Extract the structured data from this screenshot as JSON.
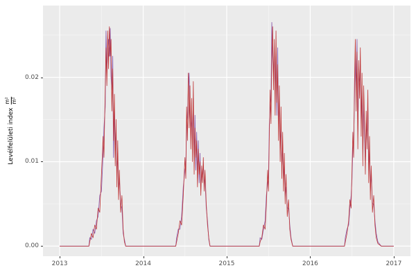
{
  "axes": {
    "y_title": "Levélfelületi index",
    "y_title_frac_numerator": "m²",
    "y_title_frac_denominator": "m²"
  },
  "chart_data": {
    "type": "line",
    "title": "",
    "xlabel": "",
    "ylabel": "Levélfelületi index m²/m²",
    "legend": "none",
    "grid": true,
    "panel_bg": "#ebebeb",
    "grid_major_color": "#ffffff",
    "grid_minor_color": "#f6f6f6",
    "xlim": [
      2012.8,
      2017.2
    ],
    "ylim": [
      -0.0012,
      0.0285
    ],
    "x_ticks": [
      2013,
      2014,
      2015,
      2016,
      2017
    ],
    "x_tick_labels": [
      "2013",
      "2014",
      "2015",
      "2016",
      "2017"
    ],
    "x_minor_ticks": [
      2013.5,
      2014.5,
      2015.5,
      2016.5
    ],
    "y_ticks": [
      0,
      0.01,
      0.02
    ],
    "y_tick_labels": [
      "0.00",
      "0.01",
      "0.02"
    ],
    "y_minor_ticks": [
      0.005,
      0.015,
      0.025
    ],
    "series": [
      {
        "name": "series-purple",
        "color": "#8e5fae",
        "width": 0.9,
        "points": [
          [
            2013.0,
            0
          ],
          [
            2013.35,
            0
          ],
          [
            2013.36,
            0.001
          ],
          [
            2013.38,
            0.0008
          ],
          [
            2013.4,
            0.002
          ],
          [
            2013.42,
            0.0015
          ],
          [
            2013.44,
            0.003
          ],
          [
            2013.46,
            0.0035
          ],
          [
            2013.48,
            0.006
          ],
          [
            2013.5,
            0.0065
          ],
          [
            2013.52,
            0.011
          ],
          [
            2013.53,
            0.014
          ],
          [
            2013.545,
            0.0165
          ],
          [
            2013.555,
            0.0255
          ],
          [
            2013.565,
            0.0205
          ],
          [
            2013.575,
            0.0235
          ],
          [
            2013.585,
            0.0245
          ],
          [
            2013.595,
            0.0225
          ],
          [
            2013.605,
            0.0258
          ],
          [
            2013.615,
            0.02
          ],
          [
            2013.625,
            0.0185
          ],
          [
            2013.635,
            0.0225
          ],
          [
            2013.645,
            0.0105
          ],
          [
            2013.655,
            0.0165
          ],
          [
            2013.665,
            0.012
          ],
          [
            2013.675,
            0.0135
          ],
          [
            2013.685,
            0.0085
          ],
          [
            2013.695,
            0.011
          ],
          [
            2013.705,
            0.0065
          ],
          [
            2013.715,
            0.008
          ],
          [
            2013.73,
            0.005
          ],
          [
            2013.745,
            0.0045
          ],
          [
            2013.76,
            0.0015
          ],
          [
            2013.775,
            0.0008
          ],
          [
            2013.79,
            0
          ],
          [
            2014.39,
            0
          ],
          [
            2014.4,
            0.001
          ],
          [
            2014.42,
            0.002
          ],
          [
            2014.44,
            0.002
          ],
          [
            2014.46,
            0.0035
          ],
          [
            2014.48,
            0.007
          ],
          [
            2014.5,
            0.009
          ],
          [
            2014.51,
            0.0095
          ],
          [
            2014.52,
            0.0145
          ],
          [
            2014.53,
            0.0155
          ],
          [
            2014.54,
            0.0185
          ],
          [
            2014.55,
            0.0205
          ],
          [
            2014.56,
            0.016
          ],
          [
            2014.57,
            0.0135
          ],
          [
            2014.58,
            0.0155
          ],
          [
            2014.59,
            0.012
          ],
          [
            2014.6,
            0.0175
          ],
          [
            2014.61,
            0.01
          ],
          [
            2014.62,
            0.0155
          ],
          [
            2014.63,
            0.009
          ],
          [
            2014.64,
            0.0135
          ],
          [
            2014.65,
            0.008
          ],
          [
            2014.66,
            0.0125
          ],
          [
            2014.67,
            0.0075
          ],
          [
            2014.68,
            0.011
          ],
          [
            2014.69,
            0.007
          ],
          [
            2014.7,
            0.0085
          ],
          [
            2014.71,
            0.0085
          ],
          [
            2014.72,
            0.0095
          ],
          [
            2014.73,
            0.0075
          ],
          [
            2014.74,
            0.008
          ],
          [
            2014.755,
            0.0045
          ],
          [
            2014.77,
            0.003
          ],
          [
            2014.785,
            0.0008
          ],
          [
            2014.8,
            0
          ],
          [
            2015.39,
            0
          ],
          [
            2015.4,
            0.001
          ],
          [
            2015.42,
            0.0008
          ],
          [
            2015.44,
            0.002
          ],
          [
            2015.46,
            0.003
          ],
          [
            2015.475,
            0.006
          ],
          [
            2015.49,
            0.0075
          ],
          [
            2015.5,
            0.008
          ],
          [
            2015.51,
            0.0145
          ],
          [
            2015.52,
            0.0165
          ],
          [
            2015.53,
            0.0175
          ],
          [
            2015.54,
            0.0265
          ],
          [
            2015.55,
            0.0225
          ],
          [
            2015.56,
            0.0205
          ],
          [
            2015.57,
            0.0225
          ],
          [
            2015.58,
            0.018
          ],
          [
            2015.59,
            0.0235
          ],
          [
            2015.6,
            0.0155
          ],
          [
            2015.61,
            0.0235
          ],
          [
            2015.62,
            0.0145
          ],
          [
            2015.63,
            0.017
          ],
          [
            2015.64,
            0.0115
          ],
          [
            2015.65,
            0.0145
          ],
          [
            2015.66,
            0.0095
          ],
          [
            2015.67,
            0.012
          ],
          [
            2015.68,
            0.008
          ],
          [
            2015.69,
            0.0095
          ],
          [
            2015.7,
            0.006
          ],
          [
            2015.71,
            0.007
          ],
          [
            2015.725,
            0.0045
          ],
          [
            2015.74,
            0.0045
          ],
          [
            2015.755,
            0.0025
          ],
          [
            2015.77,
            0.001
          ],
          [
            2015.79,
            0
          ],
          [
            2016.41,
            0
          ],
          [
            2016.42,
            0.001
          ],
          [
            2016.44,
            0.002
          ],
          [
            2016.46,
            0.0025
          ],
          [
            2016.475,
            0.0045
          ],
          [
            2016.49,
            0.006
          ],
          [
            2016.5,
            0.008
          ],
          [
            2016.51,
            0.0115
          ],
          [
            2016.52,
            0.0125
          ],
          [
            2016.53,
            0.0175
          ],
          [
            2016.54,
            0.0225
          ],
          [
            2016.55,
            0.0185
          ],
          [
            2016.56,
            0.0245
          ],
          [
            2016.57,
            0.0135
          ],
          [
            2016.58,
            0.02
          ],
          [
            2016.59,
            0.0195
          ],
          [
            2016.6,
            0.0215
          ],
          [
            2016.61,
            0.0145
          ],
          [
            2016.62,
            0.0185
          ],
          [
            2016.63,
            0.0115
          ],
          [
            2016.64,
            0.0175
          ],
          [
            2016.65,
            0.0125
          ],
          [
            2016.66,
            0.01
          ],
          [
            2016.67,
            0.0145
          ],
          [
            2016.68,
            0.013
          ],
          [
            2016.69,
            0.0165
          ],
          [
            2016.7,
            0.009
          ],
          [
            2016.71,
            0.0115
          ],
          [
            2016.72,
            0.007
          ],
          [
            2016.73,
            0.0085
          ],
          [
            2016.745,
            0.005
          ],
          [
            2016.76,
            0.005
          ],
          [
            2016.775,
            0.003
          ],
          [
            2016.79,
            0.0015
          ],
          [
            2016.81,
            0.0005
          ],
          [
            2016.85,
            0
          ],
          [
            2017.0,
            0
          ]
        ]
      },
      {
        "name": "series-red",
        "color": "#bf3434",
        "width": 0.8,
        "points": [
          [
            2013.0,
            0
          ],
          [
            2013.35,
            0
          ],
          [
            2013.36,
            0.0005
          ],
          [
            2013.38,
            0.0015
          ],
          [
            2013.4,
            0.001
          ],
          [
            2013.42,
            0.0025
          ],
          [
            2013.44,
            0.002
          ],
          [
            2013.46,
            0.0045
          ],
          [
            2013.48,
            0.004
          ],
          [
            2013.5,
            0.0085
          ],
          [
            2013.52,
            0.013
          ],
          [
            2013.53,
            0.0105
          ],
          [
            2013.545,
            0.0185
          ],
          [
            2013.555,
            0.0235
          ],
          [
            2013.565,
            0.019
          ],
          [
            2013.575,
            0.0255
          ],
          [
            2013.585,
            0.021
          ],
          [
            2013.595,
            0.026
          ],
          [
            2013.605,
            0.0225
          ],
          [
            2013.615,
            0.0245
          ],
          [
            2013.625,
            0.016
          ],
          [
            2013.635,
            0.021
          ],
          [
            2013.645,
            0.0125
          ],
          [
            2013.655,
            0.018
          ],
          [
            2013.665,
            0.0095
          ],
          [
            2013.675,
            0.015
          ],
          [
            2013.685,
            0.007
          ],
          [
            2013.695,
            0.0125
          ],
          [
            2013.705,
            0.0055
          ],
          [
            2013.715,
            0.009
          ],
          [
            2013.73,
            0.004
          ],
          [
            2013.745,
            0.006
          ],
          [
            2013.76,
            0.002
          ],
          [
            2013.775,
            0.0005
          ],
          [
            2013.79,
            0
          ],
          [
            2014.39,
            0
          ],
          [
            2014.4,
            0.0005
          ],
          [
            2014.42,
            0.0015
          ],
          [
            2014.44,
            0.003
          ],
          [
            2014.46,
            0.0025
          ],
          [
            2014.48,
            0.006
          ],
          [
            2014.5,
            0.0105
          ],
          [
            2014.51,
            0.008
          ],
          [
            2014.52,
            0.0165
          ],
          [
            2014.53,
            0.0125
          ],
          [
            2014.54,
            0.0205
          ],
          [
            2014.55,
            0.014
          ],
          [
            2014.56,
            0.019
          ],
          [
            2014.57,
            0.0115
          ],
          [
            2014.58,
            0.0175
          ],
          [
            2014.59,
            0.01
          ],
          [
            2014.6,
            0.0195
          ],
          [
            2014.61,
            0.0085
          ],
          [
            2014.62,
            0.014
          ],
          [
            2014.63,
            0.0105
          ],
          [
            2014.64,
            0.0125
          ],
          [
            2014.65,
            0.007
          ],
          [
            2014.66,
            0.0115
          ],
          [
            2014.67,
            0.0085
          ],
          [
            2014.68,
            0.01
          ],
          [
            2014.69,
            0.006
          ],
          [
            2014.7,
            0.0095
          ],
          [
            2014.71,
            0.0075
          ],
          [
            2014.72,
            0.0105
          ],
          [
            2014.73,
            0.0065
          ],
          [
            2014.74,
            0.009
          ],
          [
            2014.755,
            0.005
          ],
          [
            2014.77,
            0.0025
          ],
          [
            2014.785,
            0.001
          ],
          [
            2014.8,
            0
          ],
          [
            2015.39,
            0
          ],
          [
            2015.4,
            0.0005
          ],
          [
            2015.42,
            0.001
          ],
          [
            2015.44,
            0.0025
          ],
          [
            2015.46,
            0.002
          ],
          [
            2015.475,
            0.005
          ],
          [
            2015.49,
            0.009
          ],
          [
            2015.5,
            0.0065
          ],
          [
            2015.51,
            0.013
          ],
          [
            2015.52,
            0.0185
          ],
          [
            2015.53,
            0.0145
          ],
          [
            2015.54,
            0.0225
          ],
          [
            2015.55,
            0.026
          ],
          [
            2015.56,
            0.0185
          ],
          [
            2015.57,
            0.0245
          ],
          [
            2015.58,
            0.0155
          ],
          [
            2015.59,
            0.0255
          ],
          [
            2015.6,
            0.017
          ],
          [
            2015.61,
            0.0215
          ],
          [
            2015.62,
            0.0125
          ],
          [
            2015.63,
            0.019
          ],
          [
            2015.64,
            0.01
          ],
          [
            2015.65,
            0.0165
          ],
          [
            2015.66,
            0.008
          ],
          [
            2015.67,
            0.0135
          ],
          [
            2015.68,
            0.0065
          ],
          [
            2015.69,
            0.011
          ],
          [
            2015.7,
            0.005
          ],
          [
            2015.71,
            0.0085
          ],
          [
            2015.725,
            0.0035
          ],
          [
            2015.74,
            0.0055
          ],
          [
            2015.755,
            0.002
          ],
          [
            2015.77,
            0.0008
          ],
          [
            2015.79,
            0
          ],
          [
            2016.41,
            0
          ],
          [
            2016.42,
            0.0005
          ],
          [
            2016.44,
            0.0015
          ],
          [
            2016.46,
            0.003
          ],
          [
            2016.475,
            0.0055
          ],
          [
            2016.49,
            0.0045
          ],
          [
            2016.5,
            0.009
          ],
          [
            2016.51,
            0.0135
          ],
          [
            2016.52,
            0.0105
          ],
          [
            2016.53,
            0.0195
          ],
          [
            2016.54,
            0.0245
          ],
          [
            2016.55,
            0.016
          ],
          [
            2016.56,
            0.023
          ],
          [
            2016.57,
            0.0115
          ],
          [
            2016.58,
            0.022
          ],
          [
            2016.59,
            0.0175
          ],
          [
            2016.6,
            0.0235
          ],
          [
            2016.61,
            0.013
          ],
          [
            2016.62,
            0.0205
          ],
          [
            2016.63,
            0.0095
          ],
          [
            2016.64,
            0.019
          ],
          [
            2016.65,
            0.0145
          ],
          [
            2016.66,
            0.0085
          ],
          [
            2016.67,
            0.016
          ],
          [
            2016.68,
            0.0115
          ],
          [
            2016.69,
            0.0185
          ],
          [
            2016.7,
            0.0075
          ],
          [
            2016.71,
            0.013
          ],
          [
            2016.72,
            0.0055
          ],
          [
            2016.73,
            0.0095
          ],
          [
            2016.745,
            0.004
          ],
          [
            2016.76,
            0.006
          ],
          [
            2016.775,
            0.0025
          ],
          [
            2016.79,
            0.001
          ],
          [
            2016.81,
            0.0003
          ],
          [
            2016.85,
            0
          ],
          [
            2017.0,
            0
          ]
        ]
      }
    ]
  }
}
